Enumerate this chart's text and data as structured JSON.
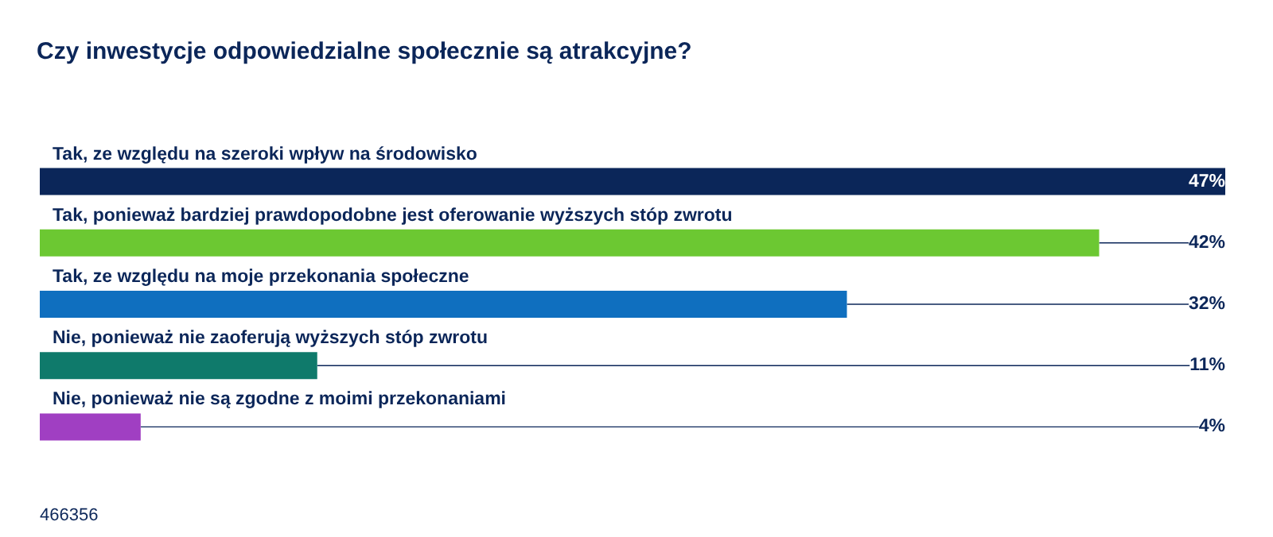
{
  "chart_data": {
    "type": "bar",
    "orientation": "horizontal",
    "title": "Czy inwestycje odpowiedzialne społecznie są atrakcyjne?",
    "categories": [
      "Tak, ze względu na szeroki wpływ na środowisko",
      "Tak, ponieważ bardziej prawdopodobne jest oferowanie wyższych stóp zwrotu",
      "Tak, ze względu na moje przekonania społeczne",
      "Nie, ponieważ nie zaoferują wyższych stóp zwrotu",
      "Nie, ponieważ nie są zgodne z moimi przekonaniami"
    ],
    "values": [
      47,
      42,
      32,
      11,
      4
    ],
    "value_labels": [
      "47%",
      "42%",
      "32%",
      "11%",
      "4%"
    ],
    "colors": [
      "#0b2659",
      "#6cc832",
      "#0f6fbf",
      "#0f7a6b",
      "#a03fc2"
    ],
    "annotations": [
      "466356"
    ]
  }
}
